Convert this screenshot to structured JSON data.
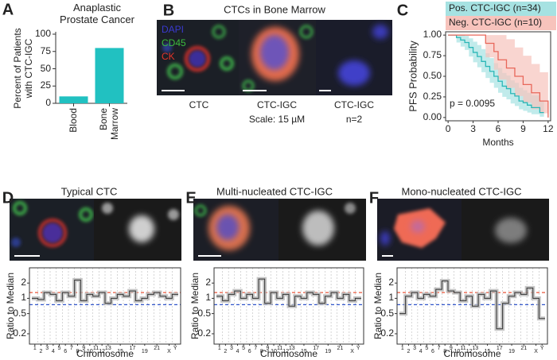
{
  "panel_labels": [
    "A",
    "B",
    "C",
    "D",
    "E",
    "F"
  ],
  "image_panels": {
    "title": "CTCs in Bone Marrow",
    "stains": [
      {
        "name": "DAPI",
        "color": "#3a3ad0"
      },
      {
        "name": "CD45",
        "color": "#3dbb3d"
      },
      {
        "name": "CK",
        "color": "#e3342a"
      }
    ],
    "captions": [
      [
        "CTC"
      ],
      [
        "CTC-IGC",
        "Scale: 15 µM"
      ],
      [
        "CTC-IGC",
        "n=2"
      ]
    ],
    "titles": [
      "Typical CTC",
      "Multi-nucleated CTC-IGC",
      "Mono-nucleated CTC-IGC"
    ]
  },
  "chart_data": [
    {
      "type": "bar",
      "title": "Anaplastic Prostate Cancer",
      "ylabel": "Percent of Patients with CTC-IGC",
      "categories": [
        "Blood",
        "Bone Marrow"
      ],
      "values": [
        10,
        80
      ],
      "color": "#21c1c1",
      "ylim": [
        0,
        100
      ],
      "yticks": [
        0,
        25,
        50,
        75,
        100
      ]
    },
    {
      "type": "km",
      "xlabel": "Months",
      "ylabel": "PFS Probability",
      "annotation": "p = 0.0095",
      "xlim": [
        -0.3,
        12.3
      ],
      "xticks": [
        0,
        3,
        6,
        9,
        12
      ],
      "ylim": [
        -0.04,
        1.04
      ],
      "yticks": [
        {
          "value": 1,
          "label": "1.00"
        },
        {
          "value": 0.75,
          "label": "0.75"
        },
        {
          "value": 0.5,
          "label": "0.50"
        },
        {
          "value": 0.25,
          "label": "0.25"
        },
        {
          "value": 0,
          "label": "0.00"
        }
      ],
      "series": [
        {
          "name": "Pos. CTC-IGC (n=34)",
          "color": "#2bb7b7",
          "band_color": "#a6e2e2",
          "x": [
            0,
            1,
            1.5,
            2,
            2.5,
            3,
            3.5,
            4,
            4.5,
            5,
            5.5,
            6,
            6.5,
            7,
            7.5,
            8,
            8.5,
            9,
            9.5,
            10,
            11,
            11.5
          ],
          "values": [
            1,
            0.97,
            0.94,
            0.91,
            0.85,
            0.79,
            0.74,
            0.68,
            0.62,
            0.56,
            0.5,
            0.44,
            0.38,
            0.35,
            0.29,
            0.26,
            0.2,
            0.18,
            0.15,
            0.12,
            0.06,
            0.06
          ],
          "lower": [
            1,
            0.91,
            0.86,
            0.82,
            0.74,
            0.67,
            0.61,
            0.55,
            0.48,
            0.42,
            0.36,
            0.3,
            0.25,
            0.22,
            0.17,
            0.14,
            0.1,
            0.08,
            0.06,
            0.04,
            0.01,
            0.01
          ],
          "upper": [
            1,
            1,
            1,
            0.99,
            0.96,
            0.92,
            0.88,
            0.83,
            0.78,
            0.72,
            0.66,
            0.6,
            0.54,
            0.51,
            0.45,
            0.42,
            0.36,
            0.33,
            0.3,
            0.27,
            0.2,
            0.2
          ]
        },
        {
          "name": "Neg. CTC-IGC (n=10)",
          "color": "#e8675a",
          "band_color": "#f7c3bc",
          "x": [
            0,
            4.5,
            5.5,
            6,
            7,
            8,
            9,
            10,
            11,
            12
          ],
          "values": [
            1,
            0.9,
            0.8,
            0.7,
            0.6,
            0.5,
            0.4,
            0.3,
            0.2,
            0
          ],
          "lower": [
            1,
            0.73,
            0.58,
            0.46,
            0.36,
            0.26,
            0.18,
            0.1,
            0.05,
            0
          ],
          "upper": [
            1,
            1,
            1,
            1,
            0.95,
            0.85,
            0.75,
            0.65,
            0.55,
            0.4
          ]
        }
      ]
    },
    {
      "type": "cnv",
      "ylabel": "Ratio to Median",
      "xlabel": "Chromosome",
      "log": true,
      "ylim": [
        0.125,
        4
      ],
      "yticks": [
        0.2,
        0.5,
        1,
        2
      ],
      "categories": [
        "1",
        "2",
        "3",
        "4",
        "5",
        "6",
        "7",
        "8",
        "9",
        "10",
        "11",
        "12",
        "13",
        null,
        "15",
        null,
        "17",
        null,
        "19",
        null,
        "21",
        null,
        "X",
        "Y"
      ],
      "values": [
        1,
        0.95,
        1.3,
        1.2,
        0.9,
        1.3,
        1.1,
        2.3,
        0.9,
        1.2,
        1.1,
        1.3,
        0.8,
        1,
        1.2,
        1.1,
        1.4,
        0.9,
        1,
        1.2,
        1.3,
        1.1,
        1,
        1.2
      ],
      "color": "#333333",
      "reference_lines": [
        {
          "value": 1.3,
          "color": "#e8553a"
        },
        {
          "value": 0.75,
          "color": "#2f53c9"
        }
      ]
    },
    {
      "type": "cnv",
      "ylabel": "Ratio to Median",
      "xlabel": "Chromosome",
      "log": true,
      "ylim": [
        0.125,
        4
      ],
      "yticks": [
        0.2,
        0.5,
        1,
        2
      ],
      "categories": [
        "1",
        "2",
        "3",
        "4",
        "5",
        "6",
        "7",
        "8",
        "9",
        "10",
        "11",
        "12",
        "13",
        null,
        "15",
        null,
        "17",
        null,
        "19",
        null,
        "21",
        null,
        "X",
        "Y"
      ],
      "values": [
        1.1,
        0.9,
        1.2,
        1.4,
        1,
        1.2,
        1,
        2.4,
        0.8,
        1.3,
        1,
        1.2,
        0.7,
        1.1,
        1,
        1.3,
        1.2,
        0.8,
        1.1,
        1.3,
        1,
        1.2,
        0.9,
        1
      ],
      "color": "#333333",
      "reference_lines": [
        {
          "value": 1.3,
          "color": "#e8553a"
        },
        {
          "value": 0.75,
          "color": "#2f53c9"
        }
      ]
    },
    {
      "type": "cnv",
      "ylabel": "Ratio to Median",
      "xlabel": "Chromosome",
      "log": true,
      "ylim": [
        0.125,
        4
      ],
      "yticks": [
        0.2,
        0.5,
        1,
        2
      ],
      "categories": [
        "1",
        "2",
        "3",
        "4",
        "5",
        "6",
        "7",
        "8",
        "9",
        "10",
        "11",
        "12",
        "13",
        null,
        "15",
        null,
        "17",
        null,
        "19",
        null,
        "21",
        null,
        "X",
        "Y"
      ],
      "values": [
        0.5,
        1.1,
        1.3,
        1,
        1.2,
        1.1,
        1.5,
        2.2,
        1.4,
        1.3,
        0.9,
        1.1,
        0.7,
        1.2,
        1,
        1.4,
        0.25,
        0.8,
        1.1,
        1.3,
        1.2,
        1.6,
        1,
        0.4
      ],
      "color": "#333333",
      "reference_lines": [
        {
          "value": 1.3,
          "color": "#e8553a"
        },
        {
          "value": 0.75,
          "color": "#2f53c9"
        }
      ]
    }
  ]
}
